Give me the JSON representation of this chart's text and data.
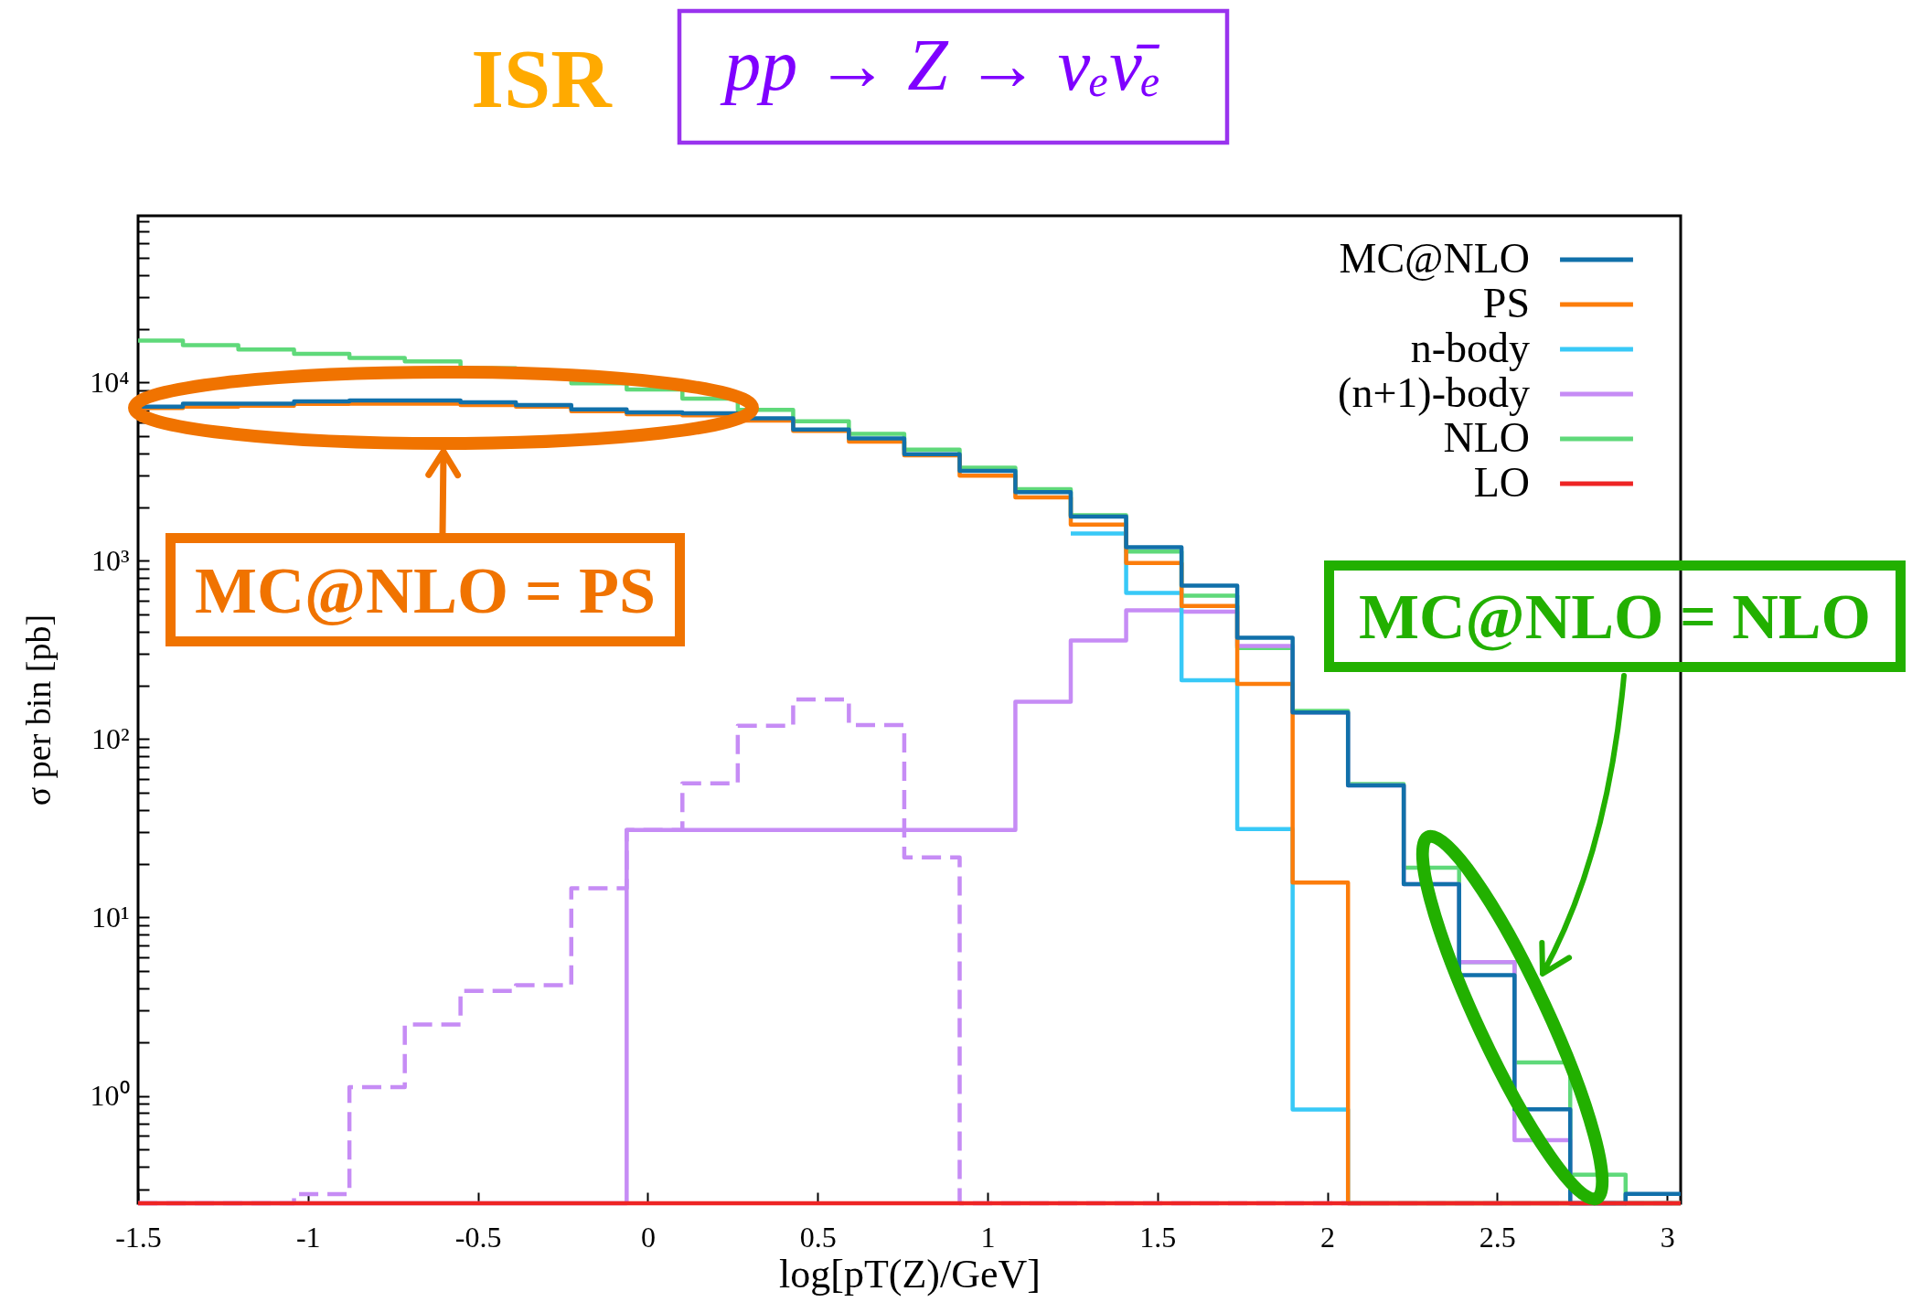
{
  "chart_data": {
    "type": "histogram",
    "title": "pp → Z → νₑν̄ₑ",
    "xlabel": "log[pT(Z)/GeV]",
    "ylabel": "σ per bin [pb]",
    "bins": [
      -1.5,
      -1.368,
      -1.205,
      -1.041,
      -0.878,
      -0.715,
      -0.551,
      -0.388,
      -0.225,
      -0.062,
      0.102,
      0.265,
      0.428,
      0.592,
      0.755,
      0.918,
      1.082,
      1.245,
      1.408,
      1.571,
      1.735,
      1.898,
      2.061,
      2.225,
      2.388,
      2.551,
      2.715,
      2.878,
      3.04
    ],
    "series": [
      {
        "name": "MC@NLO",
        "color": "#1170aa",
        "values": [
          7310,
          7610,
          7610,
          7830,
          7930,
          7930,
          7740,
          7480,
          7070,
          6790,
          6710,
          6300,
          5450,
          4860,
          3960,
          3190,
          2430,
          1770,
          1190,
          726,
          370,
          141,
          55,
          15.4,
          4.76,
          0.84,
          null,
          0.282
        ]
      },
      {
        "name": "PS",
        "color": "#fc7d0b",
        "values": [
          7180,
          7310,
          7400,
          7570,
          7610,
          7610,
          7480,
          7310,
          6900,
          6630,
          6550,
          6120,
          5345,
          4655,
          3900,
          3000,
          2270,
          1598,
          973,
          558,
          204,
          15.7,
          null,
          null,
          null,
          null,
          null,
          null
        ]
      },
      {
        "name": "n-body",
        "color": "#38c9f7",
        "bins": [
          1.245,
          1.408,
          1.571,
          1.735,
          1.898,
          2.061,
          2.225,
          2.388,
          2.551,
          2.715,
          2.878,
          3.04
        ],
        "values": [
          1422,
          661,
          214,
          31.3,
          0.839,
          null,
          null,
          null,
          null,
          null,
          null
        ]
      },
      {
        "name": "(n+1)-body",
        "color": "#c68cf5",
        "values": [
          null,
          null,
          null,
          null,
          null,
          null,
          null,
          null,
          null,
          31,
          31,
          31,
          31,
          31,
          31,
          31,
          162,
          357,
          527,
          519,
          333,
          141,
          55,
          15.4,
          5.63,
          0.564,
          null,
          null
        ]
      },
      {
        "name": "NLO",
        "color": "#5fd97a",
        "values": [
          17170,
          16200,
          15300,
          14450,
          13730,
          13120,
          12000,
          10800,
          9900,
          9140,
          8110,
          7030,
          6050,
          5150,
          4200,
          3325,
          2518,
          1800,
          1127,
          637,
          324,
          144,
          56,
          19.05,
          5.63,
          1.54,
          0.362,
          null
        ]
      },
      {
        "name": "LO",
        "color": "#ee2424",
        "values": [
          null,
          null,
          null,
          null,
          null,
          null,
          null,
          null,
          null,
          null,
          null,
          null,
          null,
          null,
          null,
          null,
          null,
          null,
          null,
          null,
          null,
          null,
          null,
          null,
          null,
          null,
          null,
          null
        ]
      },
      {
        "color": "#c68cf5",
        "line_style": "dashed",
        "values": [
          null,
          null,
          null,
          0.281,
          1.12,
          2.51,
          3.88,
          4.17,
          14.6,
          31,
          56.5,
          119,
          167,
          120,
          21.7,
          null,
          null,
          null,
          null,
          null,
          null,
          null,
          null,
          null,
          null,
          null,
          null,
          null
        ]
      }
    ],
    "xlim": [
      -1.5,
      3.04
    ],
    "xticks": [
      -1.5,
      -1,
      -0.5,
      0,
      0.5,
      1,
      1.5,
      2,
      2.5,
      3
    ],
    "ylim": [
      0.25,
      86000
    ],
    "yticks": [
      {
        "value": 0.3,
        "label": null
      },
      {
        "value": 0.4,
        "label": null
      },
      {
        "value": 0.5,
        "label": null
      },
      {
        "value": 0.6,
        "label": null
      },
      {
        "value": 0.7,
        "label": null
      },
      {
        "value": 0.8,
        "label": null
      },
      {
        "value": 0.9,
        "label": null
      },
      {
        "value": 1,
        "label": "10⁰"
      },
      {
        "value": 2,
        "label": null
      },
      {
        "value": 3,
        "label": null
      },
      {
        "value": 4,
        "label": null
      },
      {
        "value": 5,
        "label": null
      },
      {
        "value": 6,
        "label": null
      },
      {
        "value": 7,
        "label": null
      },
      {
        "value": 8,
        "label": null
      },
      {
        "value": 9,
        "label": null
      },
      {
        "value": 10,
        "label": "10¹"
      },
      {
        "value": 20,
        "label": null
      },
      {
        "value": 30,
        "label": null
      },
      {
        "value": 40,
        "label": null
      },
      {
        "value": 50,
        "label": null
      },
      {
        "value": 60,
        "label": null
      },
      {
        "value": 70,
        "label": null
      },
      {
        "value": 80,
        "label": null
      },
      {
        "value": 90,
        "label": null
      },
      {
        "value": 100,
        "label": "10²"
      },
      {
        "value": 200,
        "label": null
      },
      {
        "value": 300,
        "label": null
      },
      {
        "value": 400,
        "label": null
      },
      {
        "value": 500,
        "label": null
      },
      {
        "value": 600,
        "label": null
      },
      {
        "value": 700,
        "label": null
      },
      {
        "value": 800,
        "label": null
      },
      {
        "value": 900,
        "label": null
      },
      {
        "value": 1000,
        "label": "10³"
      },
      {
        "value": 2000,
        "label": null
      },
      {
        "value": 3000,
        "label": null
      },
      {
        "value": 4000,
        "label": null
      },
      {
        "value": 5000,
        "label": null
      },
      {
        "value": 6000,
        "label": null
      },
      {
        "value": 7000,
        "label": null
      },
      {
        "value": 8000,
        "label": null
      },
      {
        "value": 9000,
        "label": null
      },
      {
        "value": 10000,
        "label": "10⁴"
      },
      {
        "value": 20000,
        "label": null
      },
      {
        "value": 30000,
        "label": null
      },
      {
        "value": 40000,
        "label": null
      },
      {
        "value": 50000,
        "label": null
      },
      {
        "value": 60000,
        "label": null
      },
      {
        "value": 70000,
        "label": null
      },
      {
        "value": 80000,
        "label": null
      }
    ],
    "log": true,
    "legend": "top right",
    "annotations": [
      "ISR",
      "MC@NLO = PS",
      "MC@NLO = NLO"
    ]
  }
}
